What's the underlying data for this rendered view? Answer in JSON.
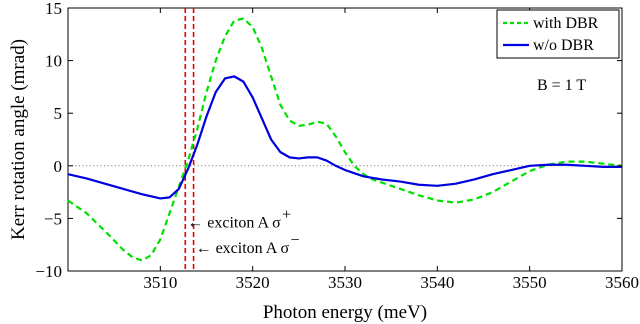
{
  "chart_data": {
    "type": "line",
    "xlabel": "Photon energy (meV)",
    "ylabel": "Kerr rotation angle (mrad)",
    "xlim": [
      3500,
      3560
    ],
    "ylim": [
      -10,
      15
    ],
    "xticks": [
      3510,
      3520,
      3530,
      3540,
      3550,
      3560
    ],
    "yticks": [
      -10,
      -5,
      0,
      5,
      10,
      15
    ],
    "grid": false,
    "legend_position": "top-right",
    "zero_line": {
      "y": 0,
      "style": "dotted",
      "color": "#808080"
    },
    "series": [
      {
        "name": "with DBR",
        "color": "#00e000",
        "style": "dashed",
        "x": [
          3500,
          3502,
          3504,
          3506,
          3507,
          3508,
          3509,
          3510,
          3511,
          3512,
          3513,
          3514,
          3515,
          3516,
          3517,
          3518,
          3519,
          3520,
          3521,
          3522,
          3523,
          3524,
          3525,
          3526,
          3527,
          3528,
          3529,
          3530,
          3531,
          3532,
          3533,
          3534,
          3536,
          3538,
          3540,
          3542,
          3544,
          3546,
          3548,
          3550,
          3552,
          3554,
          3556,
          3558,
          3560
        ],
        "y": [
          -3.3,
          -4.5,
          -6.2,
          -8.0,
          -8.7,
          -9.0,
          -8.5,
          -7.0,
          -4.5,
          -2.0,
          0.5,
          3.5,
          7.0,
          10.0,
          12.3,
          13.8,
          14.0,
          13.2,
          11.2,
          8.5,
          5.8,
          4.3,
          3.8,
          3.9,
          4.2,
          4.0,
          2.8,
          1.3,
          0.0,
          -0.8,
          -1.3,
          -1.6,
          -2.2,
          -2.8,
          -3.3,
          -3.5,
          -3.2,
          -2.5,
          -1.5,
          -0.5,
          0.1,
          0.4,
          0.4,
          0.2,
          0.0
        ]
      },
      {
        "name": "w/o DBR",
        "color": "#0000dd",
        "style": "solid",
        "x": [
          3500,
          3502,
          3504,
          3506,
          3508,
          3510,
          3511,
          3512,
          3513,
          3514,
          3515,
          3516,
          3517,
          3518,
          3519,
          3520,
          3521,
          3522,
          3523,
          3524,
          3525,
          3526,
          3527,
          3528,
          3529,
          3530,
          3531,
          3532,
          3534,
          3536,
          3538,
          3540,
          3542,
          3544,
          3546,
          3548,
          3550,
          3552,
          3554,
          3556,
          3558,
          3560
        ],
        "y": [
          -0.8,
          -1.2,
          -1.7,
          -2.2,
          -2.7,
          -3.1,
          -3.0,
          -2.2,
          -0.3,
          2.0,
          4.7,
          7.0,
          8.3,
          8.5,
          8.0,
          6.5,
          4.5,
          2.5,
          1.3,
          0.8,
          0.7,
          0.8,
          0.8,
          0.5,
          0.0,
          -0.4,
          -0.7,
          -1.0,
          -1.3,
          -1.5,
          -1.8,
          -1.9,
          -1.7,
          -1.3,
          -0.8,
          -0.4,
          0.0,
          0.1,
          0.1,
          0.0,
          -0.1,
          -0.1
        ]
      }
    ],
    "vlines": [
      {
        "x": 3512.7,
        "color": "#ee0000",
        "style": "dashed"
      },
      {
        "x": 3513.6,
        "color": "#ee0000",
        "style": "dashed"
      }
    ],
    "annotations": [
      {
        "text": "exciton A σ",
        "sup": "+",
        "arrow_to_x": 3512.7,
        "y": -5.4
      },
      {
        "text": "exciton A σ",
        "sup": "−",
        "arrow_to_x": 3513.6,
        "y": -7.8
      }
    ],
    "field_label": "B = 1 T"
  }
}
